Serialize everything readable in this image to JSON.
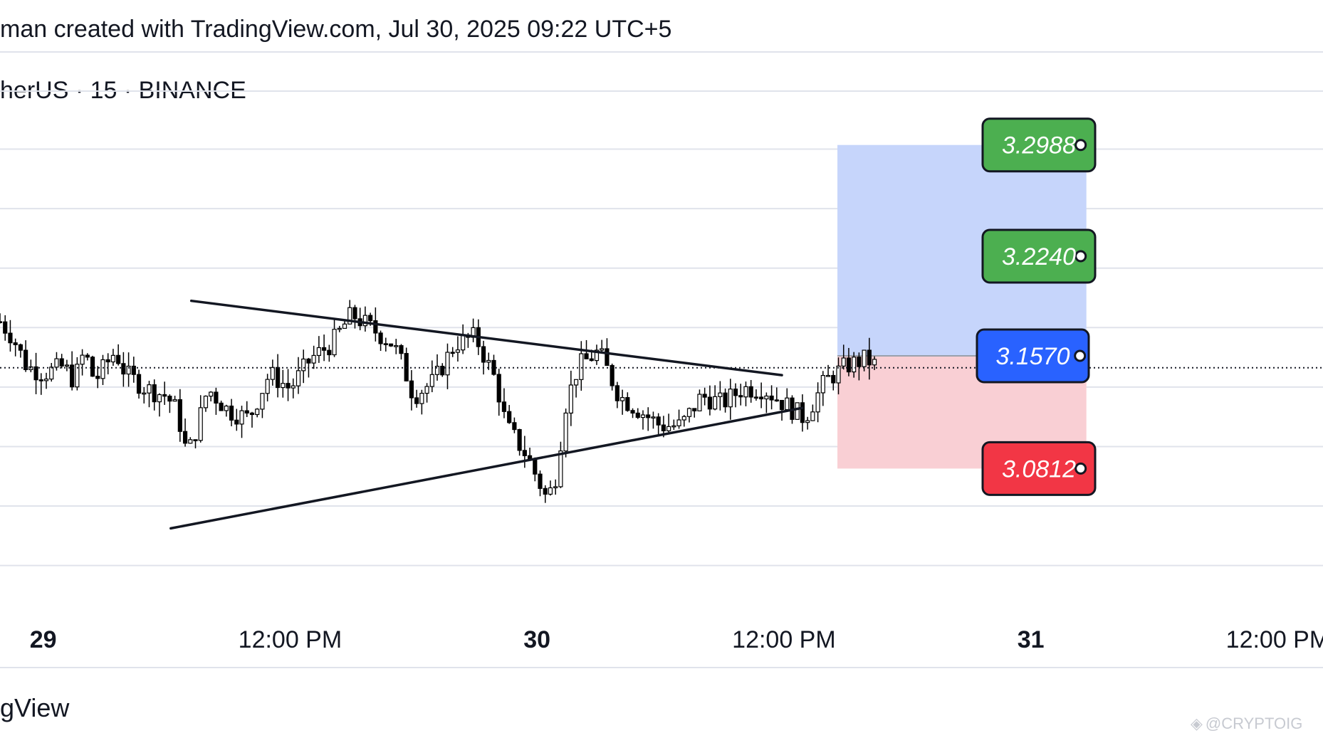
{
  "header": {
    "title": "man created with TradingView.com, Jul 30, 2025 09:22 UTC+5",
    "symbol_line": "herUS · 15 · BINANCE"
  },
  "footer": {
    "brand": "gView",
    "watermark": "@CRYPTOIG"
  },
  "colors": {
    "profit_zone": "#c6d5fb",
    "loss_zone": "#f9cfd4",
    "green_badge": "#4caf50",
    "blue_badge": "#2962ff",
    "red_badge": "#f23645",
    "grid": "#e0e3eb",
    "candle": "#000000"
  },
  "chart_data": {
    "type": "candlestick",
    "interval_minutes": 15,
    "y_range": [
      2.956,
      3.358
    ],
    "x_ticks": [
      {
        "label": "29",
        "hours": 0,
        "bold": true
      },
      {
        "label": "12:00 PM",
        "hours": 12,
        "bold": false
      },
      {
        "label": "30",
        "hours": 24,
        "bold": true
      },
      {
        "label": "12:00 PM",
        "hours": 36,
        "bold": false
      },
      {
        "label": "31",
        "hours": 48,
        "bold": true
      },
      {
        "label": "12:00 PM",
        "hours": 60,
        "bold": false
      }
    ],
    "x_range_hours": [
      -2.1,
      62.2
    ],
    "gridlines": [
      3.335,
      3.296,
      3.256,
      3.216,
      3.176,
      3.136,
      3.096,
      3.056,
      3.016
    ],
    "current_price": 3.149,
    "price_path": [
      [
        -2.1,
        3.18
      ],
      [
        -1.5,
        3.17
      ],
      [
        -0.8,
        3.15
      ],
      [
        0,
        3.145
      ],
      [
        1,
        3.15
      ],
      [
        1.5,
        3.14
      ],
      [
        2.0,
        3.16
      ],
      [
        2.5,
        3.14
      ],
      [
        3,
        3.15
      ],
      [
        3.5,
        3.16
      ],
      [
        4,
        3.145
      ],
      [
        5,
        3.135
      ],
      [
        6,
        3.13
      ],
      [
        6.5,
        3.12
      ],
      [
        7,
        3.09
      ],
      [
        7.5,
        3.11
      ],
      [
        8,
        3.135
      ],
      [
        9,
        3.12
      ],
      [
        10,
        3.115
      ],
      [
        11,
        3.145
      ],
      [
        12,
        3.135
      ],
      [
        13,
        3.155
      ],
      [
        14,
        3.165
      ],
      [
        15,
        3.185
      ],
      [
        16,
        3.175
      ],
      [
        17,
        3.165
      ],
      [
        17.5,
        3.15
      ],
      [
        18,
        3.13
      ],
      [
        19,
        3.14
      ],
      [
        20,
        3.165
      ],
      [
        21,
        3.17
      ],
      [
        22,
        3.14
      ],
      [
        22.5,
        3.11
      ],
      [
        23,
        3.1
      ],
      [
        23.5,
        3.09
      ],
      [
        24,
        3.075
      ],
      [
        24.5,
        3.06
      ],
      [
        25,
        3.08
      ],
      [
        25.3,
        3.12
      ],
      [
        26,
        3.15
      ],
      [
        27,
        3.16
      ],
      [
        28,
        3.13
      ],
      [
        29,
        3.12
      ],
      [
        30,
        3.11
      ],
      [
        31,
        3.11
      ],
      [
        32,
        3.13
      ],
      [
        33,
        3.125
      ],
      [
        34,
        3.135
      ],
      [
        35,
        3.135
      ],
      [
        36,
        3.125
      ],
      [
        37,
        3.115
      ],
      [
        38,
        3.14
      ],
      [
        39,
        3.15
      ],
      [
        40,
        3.155
      ],
      [
        40.5,
        3.15
      ]
    ],
    "trendlines": [
      {
        "name": "upper",
        "from": [
          7.2,
          3.194
        ],
        "to": [
          35.9,
          3.144
        ]
      },
      {
        "name": "lower",
        "from": [
          6.2,
          3.041
        ],
        "to": [
          36.9,
          3.122
        ]
      }
    ],
    "position": {
      "x_start_hours": 38.6,
      "x_end_hours": 50.7,
      "take_profit_2": 3.2988,
      "take_profit_1": 3.224,
      "entry": 3.157,
      "stop_loss": 3.0812
    },
    "badges": [
      {
        "label": "3.2988",
        "value": 3.2988,
        "color": "green"
      },
      {
        "label": "3.2240",
        "value": 3.224,
        "color": "green"
      },
      {
        "label": "3.1570",
        "value": 3.157,
        "color": "blue"
      },
      {
        "label": "3.0812",
        "value": 3.0812,
        "color": "red"
      }
    ]
  }
}
